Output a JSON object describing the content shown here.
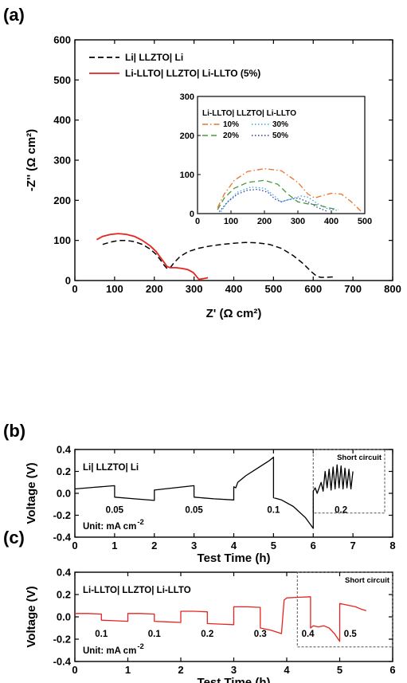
{
  "panels": {
    "a": {
      "label": "(a)"
    },
    "b": {
      "label": "(b)"
    },
    "c": {
      "label": "(c)"
    }
  },
  "chart_data": [
    {
      "id": "a",
      "type": "line",
      "xlabel": "Z' (Ω cm²)",
      "ylabel": "-Z'' (Ω cm²)",
      "xlim": [
        0,
        800
      ],
      "ylim": [
        0,
        600
      ],
      "xticks": [
        0,
        100,
        200,
        300,
        400,
        500,
        600,
        700,
        800
      ],
      "yticks": [
        0,
        100,
        200,
        300,
        400,
        500,
        600
      ],
      "legend_position": "top-left",
      "series": [
        {
          "name": "Li| LLZTO| Li",
          "color": "#000000",
          "style": "dashed",
          "x": [
            70,
            90,
            110,
            130,
            150,
            170,
            190,
            205,
            215,
            225,
            232,
            240,
            250,
            265,
            285,
            310,
            340,
            370,
            400,
            430,
            460,
            490,
            520,
            550,
            575,
            595,
            610,
            620,
            630,
            650
          ],
          "y": [
            90,
            96,
            100,
            100,
            97,
            90,
            78,
            65,
            52,
            38,
            30,
            32,
            45,
            60,
            72,
            80,
            86,
            90,
            93,
            95,
            94,
            90,
            80,
            62,
            42,
            22,
            10,
            8,
            8,
            9
          ]
        },
        {
          "name": "Li-LLTO| LLZTO| Li-LLTO (5%)",
          "color": "#e8231f",
          "style": "solid",
          "x": [
            55,
            70,
            90,
            110,
            130,
            150,
            170,
            190,
            205,
            215,
            225,
            232,
            240,
            255,
            270,
            285,
            298,
            305,
            312,
            325,
            335
          ],
          "y": [
            102,
            110,
            115,
            117,
            115,
            110,
            100,
            86,
            72,
            58,
            45,
            35,
            32,
            32,
            30,
            27,
            20,
            12,
            3,
            5,
            7
          ]
        }
      ],
      "inset": {
        "type": "line",
        "xlim": [
          0,
          500
        ],
        "ylim": [
          0,
          300
        ],
        "xticks": [
          0,
          100,
          200,
          300,
          400,
          500
        ],
        "yticks": [
          0,
          100,
          200,
          300
        ],
        "legend_title": "Li-LLTO| LLZTO| Li-LLTO",
        "series": [
          {
            "name": "10%",
            "color": "#e8742b",
            "style": "dashdot",
            "x": [
              60,
              80,
              110,
              150,
              200,
              250,
              300,
              330,
              350,
              370,
              400,
              430,
              460,
              490
            ],
            "y": [
              15,
              50,
              85,
              108,
              115,
              110,
              80,
              50,
              40,
              45,
              52,
              50,
              30,
              5
            ]
          },
          {
            "name": "30%",
            "color": "#3aa7e0",
            "style": "dotted",
            "x": [
              70,
              90,
              120,
              160,
              200,
              230,
              250,
              280,
              310,
              330,
              360,
              390,
              420
            ],
            "y": [
              5,
              30,
              55,
              68,
              65,
              45,
              30,
              38,
              45,
              42,
              25,
              12,
              8
            ]
          },
          {
            "name": "20%",
            "color": "#4a9a3a",
            "style": "dashed",
            "x": [
              60,
              80,
              110,
              150,
              200,
              240,
              270,
              300,
              330,
              360,
              390,
              420
            ],
            "y": [
              10,
              40,
              65,
              80,
              85,
              75,
              50,
              30,
              25,
              22,
              15,
              10
            ]
          },
          {
            "name": "50%",
            "color": "#2a3fb0",
            "style": "dotted",
            "x": [
              65,
              90,
              120,
              150,
              180,
              210,
              230,
              250,
              270,
              300,
              330,
              360,
              390
            ],
            "y": [
              5,
              30,
              50,
              60,
              62,
              55,
              38,
              30,
              35,
              40,
              30,
              15,
              5
            ]
          }
        ]
      }
    },
    {
      "id": "b",
      "type": "line",
      "xlabel": "Test Time (h)",
      "ylabel": "Voltage (V)",
      "xlim": [
        0,
        8
      ],
      "ylim": [
        -0.4,
        0.4
      ],
      "xticks": [
        0,
        1,
        2,
        3,
        4,
        5,
        6,
        7,
        8
      ],
      "yticks": [
        -0.4,
        -0.2,
        0.0,
        0.2,
        0.4
      ],
      "title_text": "Li| LLZTO| Li",
      "unit_text": "Unit: mA cm",
      "unit_sup": "-2",
      "current_labels": [
        {
          "x": 1.0,
          "y": -0.15,
          "text": "0.05"
        },
        {
          "x": 3.0,
          "y": -0.15,
          "text": "0.05"
        },
        {
          "x": 5.0,
          "y": -0.15,
          "text": "0.1"
        },
        {
          "x": 6.7,
          "y": -0.15,
          "text": "0.2"
        }
      ],
      "box_label": "Short circuit",
      "box": {
        "x0": 6.0,
        "x1": 7.8,
        "y0": -0.18,
        "y1": 0.4
      },
      "series": [
        {
          "name": "Li| LLZTO| Li",
          "color": "#000000",
          "x": [
            0,
            0.5,
            1.0,
            1.0,
            1.5,
            2.0,
            2.0,
            2.5,
            3.0,
            3.0,
            3.5,
            4.0,
            4.0,
            4.05,
            4.1,
            4.3,
            4.6,
            4.9,
            5.0,
            5.0,
            5.2,
            5.5,
            5.8,
            6.0,
            6.0,
            6.05,
            6.1,
            6.2,
            6.25,
            6.3,
            6.35,
            6.4,
            6.45,
            6.5,
            6.55,
            6.6,
            6.65,
            6.7,
            6.75,
            6.8,
            6.85,
            6.9,
            6.95,
            7.0
          ],
          "y": [
            0.04,
            0.055,
            0.07,
            -0.035,
            -0.05,
            -0.065,
            0.03,
            0.05,
            0.07,
            -0.035,
            -0.05,
            -0.06,
            0.06,
            0.05,
            0.1,
            0.16,
            0.23,
            0.3,
            0.33,
            -0.04,
            -0.06,
            -0.12,
            -0.22,
            -0.32,
            0.02,
            0.05,
            0.0,
            0.1,
            0.02,
            0.2,
            0.05,
            0.22,
            0.03,
            0.24,
            0.04,
            0.26,
            0.05,
            0.25,
            0.04,
            0.23,
            0.05,
            0.22,
            0.04,
            0.2
          ]
        }
      ]
    },
    {
      "id": "c",
      "type": "line",
      "xlabel": "Test Time (h)",
      "ylabel": "Voltage (V)",
      "xlim": [
        0,
        6
      ],
      "ylim": [
        -0.4,
        0.4
      ],
      "xticks": [
        0,
        1,
        2,
        3,
        4,
        5,
        6
      ],
      "yticks": [
        -0.4,
        -0.2,
        0.0,
        0.2,
        0.4
      ],
      "title_text": "Li-LLTO| LLZTO| Li-LLTO",
      "unit_text": "Unit: mA cm",
      "unit_sup": "-2",
      "current_labels": [
        {
          "x": 0.5,
          "y": -0.15,
          "text": "0.1"
        },
        {
          "x": 1.5,
          "y": -0.15,
          "text": "0.1"
        },
        {
          "x": 2.5,
          "y": -0.15,
          "text": "0.2"
        },
        {
          "x": 3.5,
          "y": -0.15,
          "text": "0.3"
        },
        {
          "x": 4.4,
          "y": -0.15,
          "text": "0.4"
        },
        {
          "x": 5.2,
          "y": -0.15,
          "text": "0.5"
        }
      ],
      "box_label": "Short circuit",
      "box": {
        "x0": 4.2,
        "x1": 6.0,
        "y0": -0.27,
        "y1": 0.4
      },
      "series": [
        {
          "name": "Li-LLTO| LLZTO| Li-LLTO",
          "color": "#e8231f",
          "x": [
            0,
            0.25,
            0.5,
            0.5,
            0.75,
            1.0,
            1.0,
            1.25,
            1.5,
            1.5,
            1.75,
            2.0,
            2.0,
            2.25,
            2.5,
            2.5,
            2.75,
            3.0,
            3.0,
            3.25,
            3.5,
            3.5,
            3.7,
            3.9,
            3.95,
            4.0,
            4.2,
            4.45,
            4.45,
            4.5,
            4.6,
            4.7,
            4.8,
            4.9,
            5.0,
            5.0,
            5.1,
            5.2,
            5.3,
            5.4,
            5.5
          ],
          "y": [
            0.03,
            0.03,
            0.025,
            -0.03,
            -0.035,
            -0.04,
            0.03,
            0.03,
            0.025,
            -0.04,
            -0.045,
            -0.05,
            0.05,
            0.05,
            0.045,
            -0.06,
            -0.065,
            -0.07,
            0.09,
            0.09,
            0.085,
            -0.1,
            -0.12,
            -0.15,
            0.15,
            0.17,
            0.175,
            0.18,
            -0.1,
            -0.08,
            -0.09,
            -0.08,
            -0.1,
            -0.15,
            -0.22,
            0.12,
            0.11,
            0.1,
            0.09,
            0.07,
            0.055
          ]
        }
      ]
    }
  ]
}
